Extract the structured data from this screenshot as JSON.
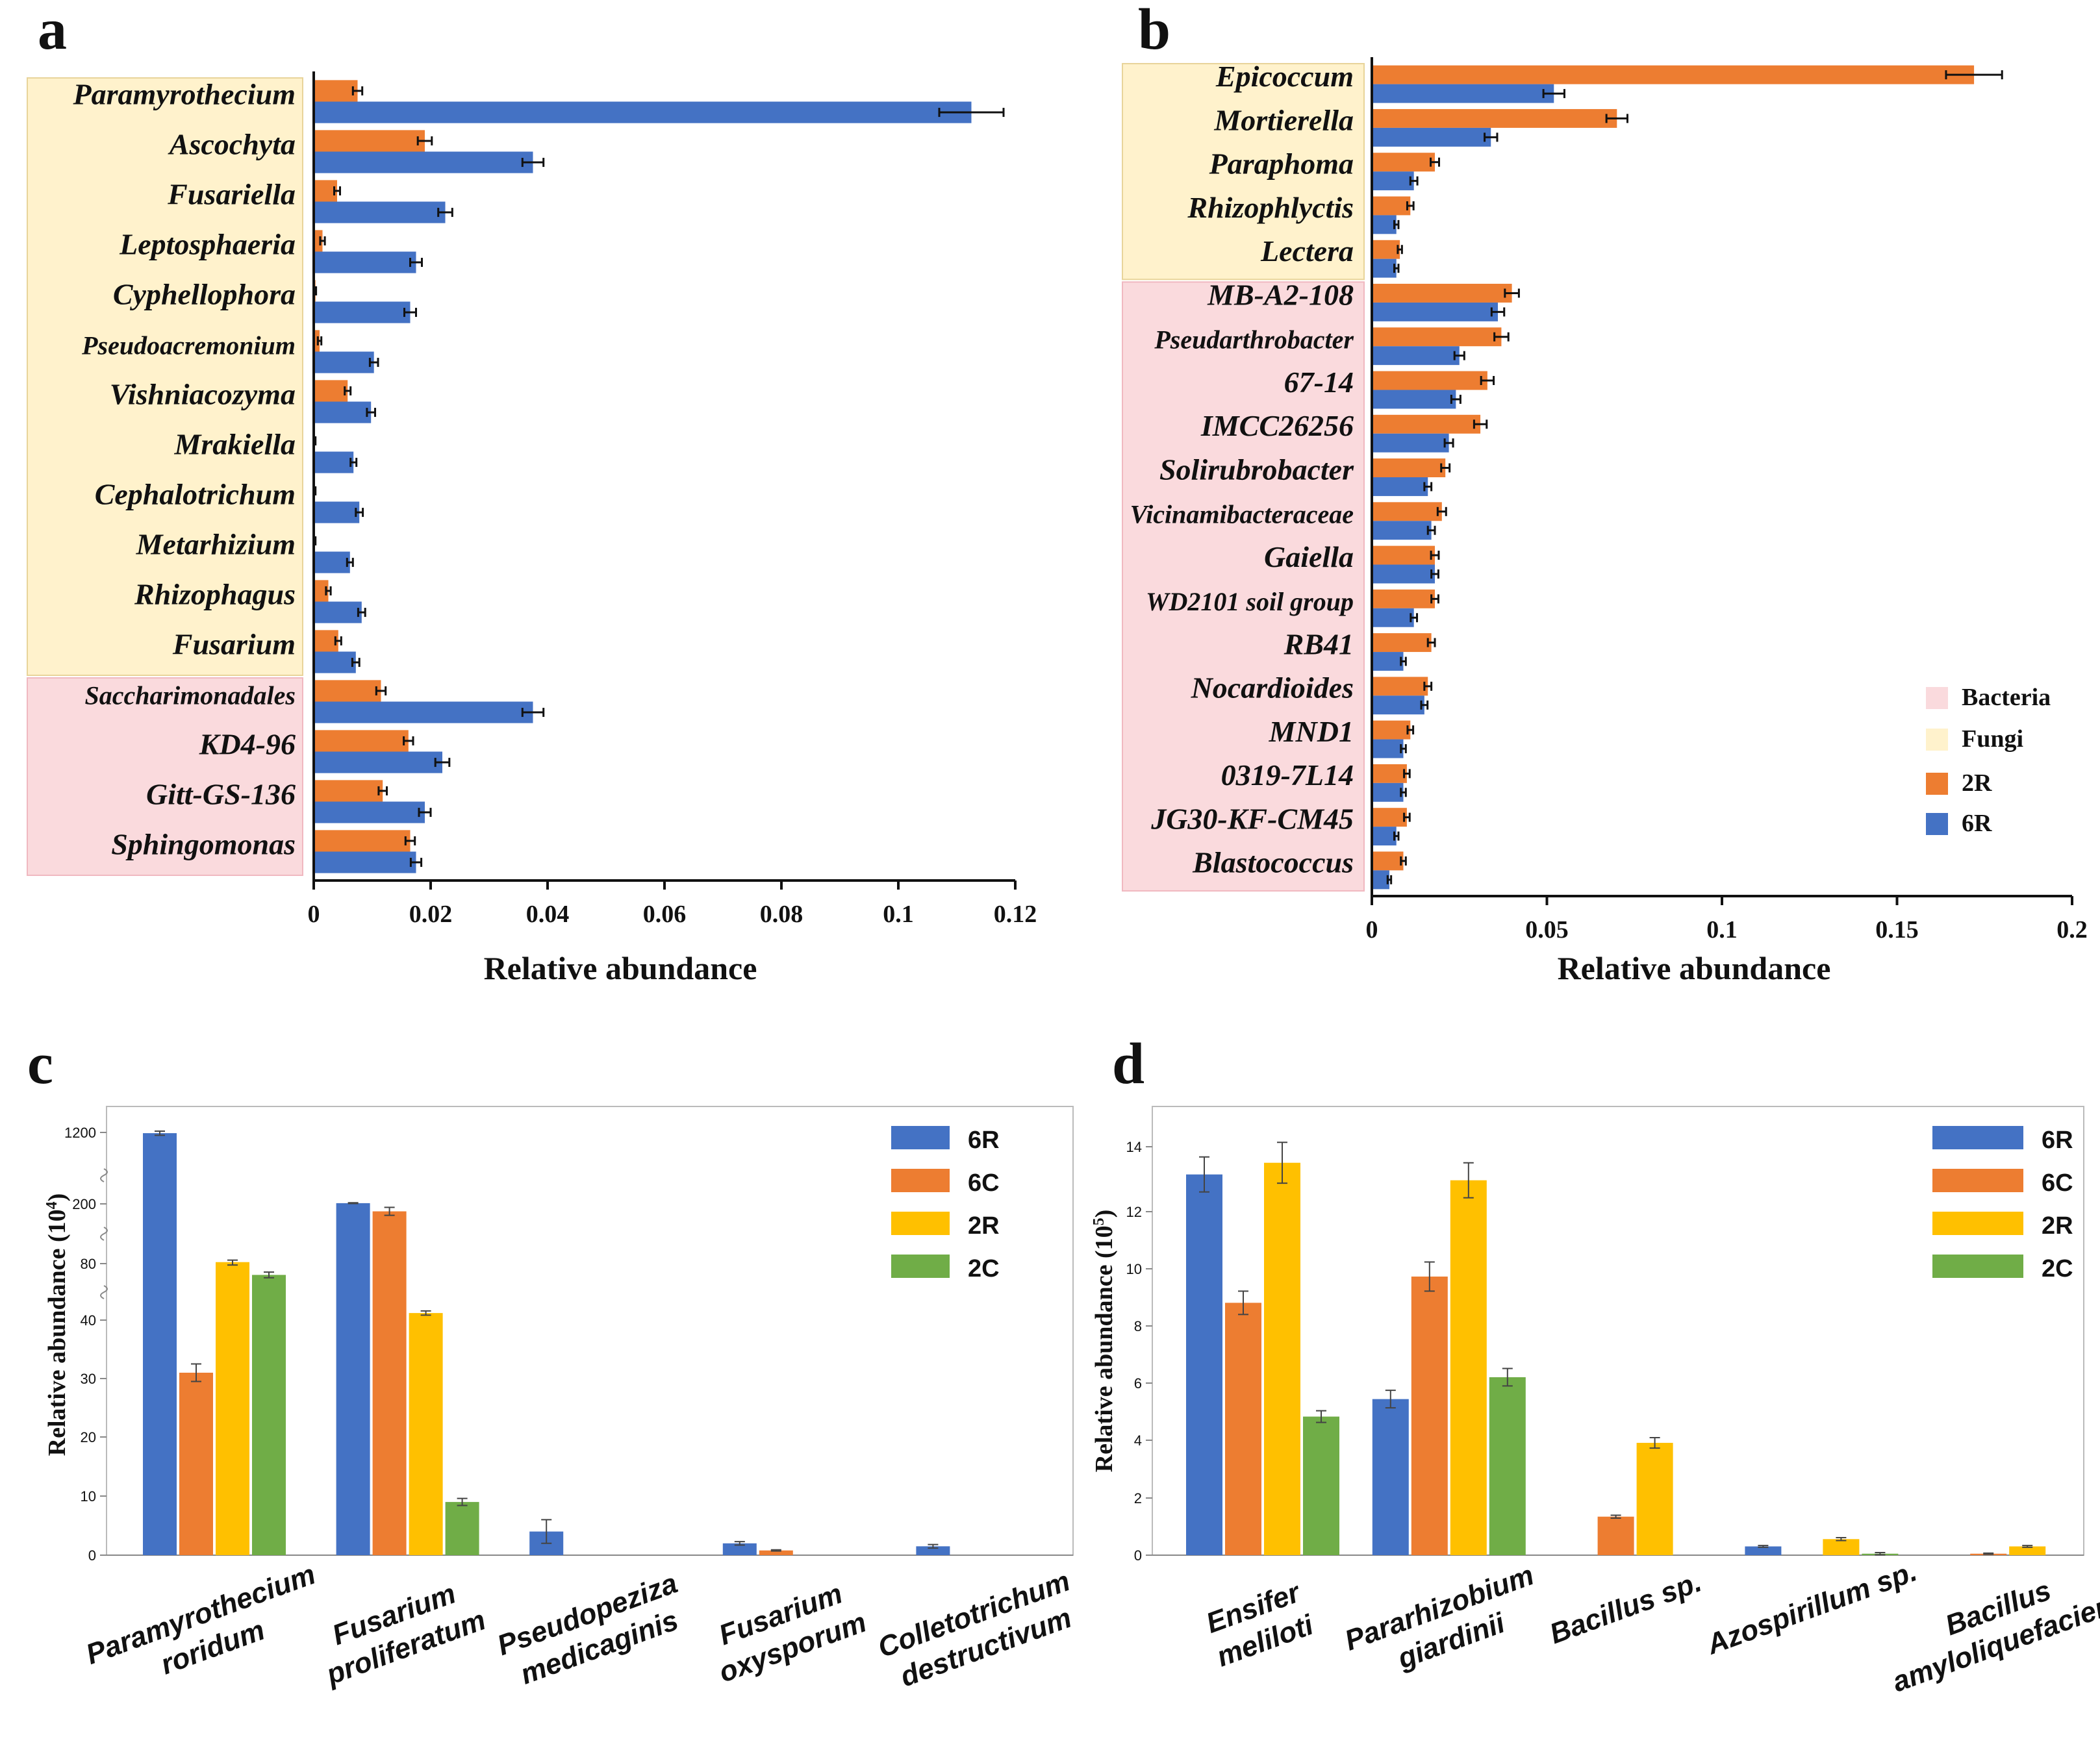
{
  "colors": {
    "c6R": "#4472C4",
    "c2R": "#ED7D31",
    "c6C": "#ED7D31",
    "c2Rbar": "#FFC000",
    "c2C": "#70AD47",
    "bacteria": "#FADADD",
    "fungi": "#FFF2CC",
    "fungiBorder": "#E8D49A",
    "bacteriaBorder": "#F0B8C0"
  },
  "chart_data": [
    {
      "panel": "a",
      "type": "bar",
      "orientation": "horizontal",
      "xlabel": "Relative abundance",
      "xlim": [
        0,
        0.12
      ],
      "xticks": [
        "0",
        "0.02",
        "0.04",
        "0.06",
        "0.08",
        "0.1",
        "0.12"
      ],
      "categories": [
        "Paramyrothecium",
        "Ascochyta",
        "Fusariella",
        "Leptosphaeria",
        "Cyphellophora",
        "Pseudoacremonium",
        "Vishniacozyma",
        "Mrakiella",
        "Cephalotrichum",
        "Metarhizium",
        "Rhizophagus",
        "Fusarium",
        "Saccharimonadales",
        "KD4-96",
        "Gitt-GS-136",
        "Sphingomonas"
      ],
      "groups": [
        "fungi",
        "fungi",
        "fungi",
        "fungi",
        "fungi",
        "fungi",
        "fungi",
        "fungi",
        "fungi",
        "fungi",
        "fungi",
        "fungi",
        "bacteria",
        "bacteria",
        "bacteria",
        "bacteria"
      ],
      "series": [
        {
          "name": "2R",
          "values": [
            0.0075,
            0.019,
            0.004,
            0.0015,
            0.0003,
            0.001,
            0.0058,
            0.0002,
            0.0002,
            0.0002,
            0.0025,
            0.0042,
            0.0115,
            0.0162,
            0.0118,
            0.0165
          ],
          "errors": [
            0.0008,
            0.0012,
            0.0005,
            0.0004,
            0.0001,
            0.0003,
            0.0005,
            0.0001,
            0.0001,
            0.0001,
            0.0004,
            0.0005,
            0.0008,
            0.0008,
            0.0007,
            0.0008
          ]
        },
        {
          "name": "6R",
          "values": [
            0.1125,
            0.0375,
            0.0225,
            0.0175,
            0.0165,
            0.0103,
            0.0098,
            0.0068,
            0.0078,
            0.0062,
            0.0082,
            0.0072,
            0.0375,
            0.022,
            0.019,
            0.0175
          ],
          "errors": [
            0.0055,
            0.0018,
            0.0012,
            0.001,
            0.001,
            0.0007,
            0.0007,
            0.0005,
            0.0006,
            0.0005,
            0.0006,
            0.0006,
            0.0018,
            0.0012,
            0.001,
            0.0009
          ]
        }
      ]
    },
    {
      "panel": "b",
      "type": "bar",
      "orientation": "horizontal",
      "xlabel": "Relative abundance",
      "xlim": [
        0,
        0.2
      ],
      "xticks": [
        "0",
        "0.05",
        "0.1",
        "0.15",
        "0.2"
      ],
      "categories": [
        "Epicoccum",
        "Mortierella",
        "Paraphoma",
        "Rhizophlyctis",
        "Lectera",
        "MB-A2-108",
        "Pseudarthrobacter",
        "67-14",
        "IMCC26256",
        "Solirubrobacter",
        "Vicinamibacteraceae",
        "Gaiella",
        "WD2101 soil group",
        "RB41",
        "Nocardioides",
        "MND1",
        "0319-7L14",
        "JG30-KF-CM45",
        "Blastococcus"
      ],
      "groups": [
        "fungi",
        "fungi",
        "fungi",
        "fungi",
        "fungi",
        "bacteria",
        "bacteria",
        "bacteria",
        "bacteria",
        "bacteria",
        "bacteria",
        "bacteria",
        "bacteria",
        "bacteria",
        "bacteria",
        "bacteria",
        "bacteria",
        "bacteria",
        "bacteria"
      ],
      "series": [
        {
          "name": "2R",
          "values": [
            0.172,
            0.07,
            0.018,
            0.011,
            0.008,
            0.04,
            0.037,
            0.033,
            0.031,
            0.021,
            0.02,
            0.018,
            0.018,
            0.017,
            0.016,
            0.011,
            0.01,
            0.01,
            0.009
          ],
          "errors": [
            0.008,
            0.003,
            0.0012,
            0.0009,
            0.0006,
            0.002,
            0.002,
            0.0018,
            0.0018,
            0.0012,
            0.0012,
            0.0011,
            0.001,
            0.001,
            0.001,
            0.0008,
            0.0008,
            0.0008,
            0.0007
          ]
        },
        {
          "name": "6R",
          "values": [
            0.052,
            0.034,
            0.012,
            0.007,
            0.007,
            0.036,
            0.025,
            0.024,
            0.022,
            0.016,
            0.017,
            0.018,
            0.012,
            0.009,
            0.015,
            0.009,
            0.009,
            0.007,
            0.005
          ],
          "errors": [
            0.003,
            0.0018,
            0.001,
            0.0006,
            0.0006,
            0.0018,
            0.0014,
            0.0013,
            0.0012,
            0.001,
            0.001,
            0.001,
            0.0009,
            0.0007,
            0.0009,
            0.0007,
            0.0007,
            0.0006,
            0.0005
          ]
        }
      ],
      "legend": [
        "Bacteria",
        "Fungi",
        "2R",
        "6R"
      ]
    },
    {
      "panel": "c",
      "type": "bar",
      "ylabel": "Relative abundance (10",
      "ylabel_exp": "4",
      "yticks": [
        "0",
        "10",
        "20",
        "30",
        "40",
        "80",
        "200",
        "1200"
      ],
      "categories": [
        [
          "Paramyrothecium",
          "roridum"
        ],
        [
          "Fusarium",
          "proliferatum"
        ],
        [
          "Pseudopeziza",
          "medicaginis"
        ],
        [
          "Fusarium",
          "oxysporum"
        ],
        [
          "Colletotrichum",
          "destructivum"
        ]
      ],
      "series": [
        {
          "name": "6R",
          "values": [
            1190,
            210,
            4,
            2,
            1.5
          ],
          "errors": [
            30,
            6,
            2,
            0.3,
            0.3
          ]
        },
        {
          "name": "6C",
          "values": [
            31,
            185,
            0,
            0.8,
            0
          ],
          "errors": [
            1.5,
            8,
            0,
            0.1,
            0
          ]
        },
        {
          "name": "2R",
          "values": [
            83,
            45,
            0,
            0,
            0
          ],
          "errors": [
            4,
            1.5,
            0,
            0,
            0
          ]
        },
        {
          "name": "2C",
          "values": [
            72,
            9,
            0,
            0,
            0
          ],
          "errors": [
            2,
            0.6,
            0,
            0,
            0
          ]
        }
      ],
      "legend": [
        "6R",
        "6C",
        "2R",
        "2C"
      ]
    },
    {
      "panel": "d",
      "type": "bar",
      "ylabel": "Relative abundance (10",
      "ylabel_exp": "5",
      "ylim": [
        0,
        15
      ],
      "yticks": [
        "0",
        "2",
        "4",
        "6",
        "8",
        "10",
        "12",
        "14"
      ],
      "categories": [
        [
          "Ensifer",
          "meliloti"
        ],
        [
          "Pararhizobium",
          "giardinii"
        ],
        [
          "Bacillus sp."
        ],
        [
          "Azospirillum sp."
        ],
        [
          "Bacillus",
          "amyloliquefaciens"
        ]
      ],
      "series": [
        {
          "name": "6R",
          "values": [
            13.05,
            5.35,
            0,
            0.3,
            0
          ],
          "errors": [
            0.6,
            0.3,
            0,
            0.03,
            0
          ]
        },
        {
          "name": "6C",
          "values": [
            8.65,
            9.55,
            1.32,
            0,
            0.05
          ],
          "errors": [
            0.4,
            0.5,
            0.05,
            0,
            0.02
          ]
        },
        {
          "name": "2R",
          "values": [
            13.45,
            12.85,
            3.85,
            0.55,
            0.3
          ],
          "errors": [
            0.7,
            0.6,
            0.18,
            0.05,
            0.03
          ]
        },
        {
          "name": "2C",
          "values": [
            4.75,
            6.1,
            0,
            0.05,
            0
          ],
          "errors": [
            0.2,
            0.3,
            0,
            0.04,
            0
          ]
        }
      ],
      "legend": [
        "6R",
        "6C",
        "2R",
        "2C"
      ]
    }
  ]
}
